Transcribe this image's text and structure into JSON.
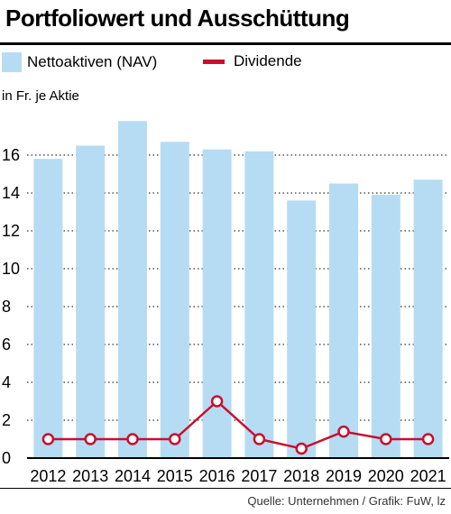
{
  "title": "Portfoliowert und Ausschüttung",
  "unit_label": "in Fr. je Aktie",
  "source": "Quelle: Unternehmen / Grafik: FuW, lz",
  "colors": {
    "nav": "#b6dcf3",
    "dividend": "#c8102e",
    "grid": "#333333"
  },
  "chart_data": {
    "type": "bar",
    "categories": [
      "2012",
      "2013",
      "2014",
      "2015",
      "2016",
      "2017",
      "2018",
      "2019",
      "2020",
      "2021"
    ],
    "series": [
      {
        "name": "Nettoaktiven (NAV)",
        "type": "bar",
        "values": [
          15.8,
          16.5,
          17.8,
          16.7,
          16.3,
          16.2,
          13.6,
          14.5,
          13.9,
          14.7
        ]
      },
      {
        "name": "Dividende",
        "type": "line",
        "values": [
          1.0,
          1.0,
          1.0,
          1.0,
          3.0,
          1.0,
          0.5,
          1.4,
          1.0,
          1.0
        ]
      }
    ],
    "ylim": [
      0,
      18
    ],
    "yticks": [
      "0",
      "2",
      "4",
      "6",
      "8",
      "10",
      "12",
      "14",
      "16"
    ],
    "grid": "dotted horizontal",
    "legend": "top-left"
  }
}
